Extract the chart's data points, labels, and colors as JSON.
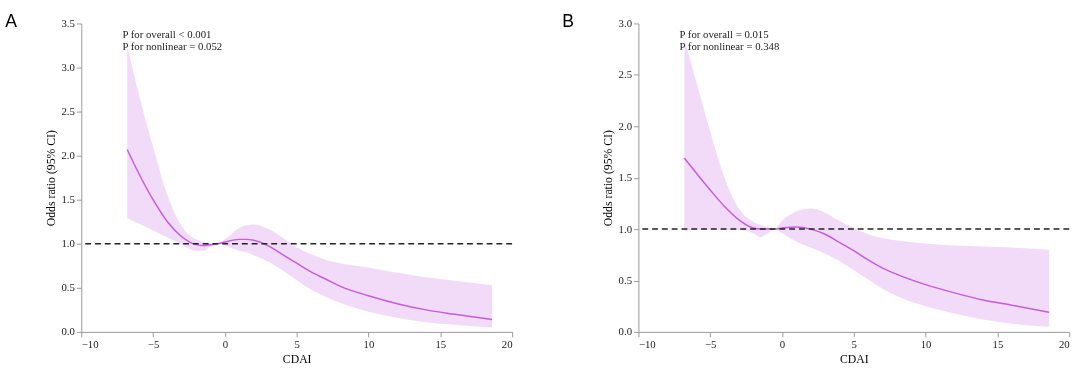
{
  "chart_data": [
    {
      "type": "line",
      "title": "A",
      "xlabel": "CDAI",
      "ylabel": "Odds ratio (95% CI)",
      "annotations": [
        "P for overall < 0.001",
        "P for nonlinear = 0.052"
      ],
      "series": [
        {
          "color": "#c45ce0",
          "x": [
            -6.8,
            -6,
            -5,
            -4,
            -3,
            -2,
            -1.5,
            -1,
            -0.5,
            0,
            1,
            1.5,
            2,
            3,
            4,
            5,
            6,
            7,
            8,
            10,
            12,
            14,
            16,
            18.6
          ],
          "values": [
            2.07,
            1.8,
            1.5,
            1.25,
            1.08,
            0.99,
            0.98,
            0.99,
            1.0,
            1.02,
            1.05,
            1.05,
            1.04,
            0.98,
            0.88,
            0.78,
            0.68,
            0.6,
            0.52,
            0.41,
            0.32,
            0.25,
            0.2,
            0.14
          ],
          "upper": [
            3.25,
            2.7,
            2.1,
            1.55,
            1.2,
            1.05,
            1.02,
            1.01,
            1.0,
            1.05,
            1.18,
            1.21,
            1.22,
            1.17,
            1.07,
            0.96,
            0.88,
            0.82,
            0.78,
            0.73,
            0.67,
            0.62,
            0.58,
            0.53
          ],
          "lower": [
            1.29,
            1.23,
            1.15,
            1.07,
            0.99,
            0.92,
            0.92,
            0.97,
            1.0,
            0.98,
            0.92,
            0.9,
            0.87,
            0.8,
            0.7,
            0.59,
            0.48,
            0.4,
            0.33,
            0.23,
            0.16,
            0.11,
            0.08,
            0.05
          ]
        }
      ],
      "ref_lines": [
        {
          "axis": "y",
          "value": 1,
          "color": "#222222",
          "line_style": "dashed"
        }
      ],
      "xlim": [
        -10,
        20
      ],
      "xticks": [
        -10,
        -5,
        0,
        5,
        10,
        15,
        20
      ],
      "ylim": [
        0,
        3.5
      ],
      "yticks": [
        {
          "value": 0,
          "label": "0.0"
        },
        0.5,
        {
          "value": 1,
          "label": "1.0"
        },
        1.5,
        {
          "value": 2,
          "label": "2.0"
        },
        2.5,
        {
          "value": 3,
          "label": "3.0"
        },
        3.5
      ],
      "grid": false,
      "marker": "none",
      "line_style": "solid"
    },
    {
      "type": "line",
      "title": "B",
      "xlabel": "CDAI",
      "ylabel": "Odds ratio (95% CI)",
      "annotations": [
        "P for overall = 0.015",
        "P for nonlinear = 0.348"
      ],
      "series": [
        {
          "color": "#c45ce0",
          "x": [
            -6.8,
            -6,
            -5,
            -4,
            -3,
            -2,
            -1.5,
            -1,
            -0.5,
            0,
            1,
            2,
            3,
            4,
            5,
            6,
            7,
            8,
            10,
            12,
            14,
            16,
            18.6
          ],
          "values": [
            1.69,
            1.55,
            1.38,
            1.22,
            1.09,
            1.01,
            1.0,
            1.0,
            1.0,
            1.01,
            1.02,
            1.0,
            0.95,
            0.87,
            0.79,
            0.7,
            0.62,
            0.56,
            0.46,
            0.38,
            0.31,
            0.26,
            0.19
          ],
          "upper": [
            2.85,
            2.45,
            1.95,
            1.5,
            1.2,
            1.07,
            1.04,
            1.02,
            1.0,
            1.08,
            1.17,
            1.2,
            1.16,
            1.08,
            1.01,
            0.95,
            0.91,
            0.89,
            0.86,
            0.84,
            0.83,
            0.82,
            0.8
          ],
          "lower": [
            0.98,
            0.99,
            0.99,
            0.99,
            0.99,
            0.96,
            0.92,
            0.96,
            1.0,
            0.96,
            0.88,
            0.82,
            0.76,
            0.69,
            0.6,
            0.51,
            0.42,
            0.35,
            0.25,
            0.18,
            0.12,
            0.08,
            0.05
          ]
        }
      ],
      "ref_lines": [
        {
          "axis": "y",
          "value": 1,
          "color": "#222222",
          "line_style": "dashed"
        }
      ],
      "xlim": [
        -10,
        20
      ],
      "xticks": [
        -10,
        -5,
        0,
        5,
        10,
        15,
        20
      ],
      "ylim": [
        0,
        3.0
      ],
      "yticks": [
        {
          "value": 0,
          "label": "0.0"
        },
        0.5,
        {
          "value": 1,
          "label": "1.0"
        },
        1.5,
        {
          "value": 2,
          "label": "2.0"
        },
        2.5,
        {
          "value": 3,
          "label": "3.0"
        }
      ],
      "grid": false,
      "marker": "none",
      "line_style": "solid"
    }
  ]
}
